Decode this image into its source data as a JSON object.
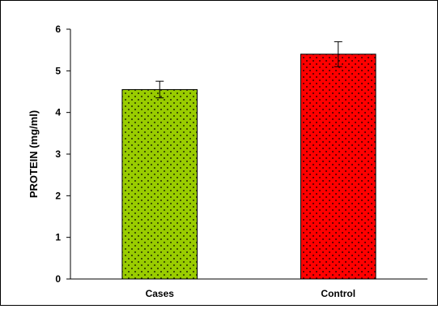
{
  "chart_data": {
    "type": "bar",
    "categories": [
      "Cases",
      "Control"
    ],
    "values": [
      4.55,
      5.4
    ],
    "error": [
      0.2,
      0.3
    ],
    "colors": [
      "#99CC00",
      "#FF0000"
    ],
    "pattern": "dotted",
    "title": "",
    "xlabel": "",
    "ylabel": "PROTEIN (mg/ml)",
    "ylim": [
      0,
      6
    ],
    "yticks": [
      "0",
      "1",
      "2",
      "3",
      "4",
      "5",
      "6"
    ],
    "grid": false
  }
}
